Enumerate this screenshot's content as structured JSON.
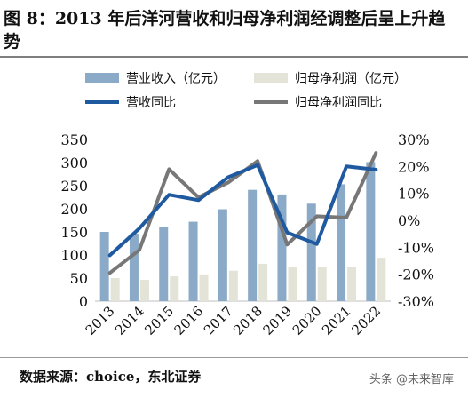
{
  "figure": {
    "title": "图 8：2013 年后洋河营收和归母净利润经调整后呈上升趋势",
    "source": "数据来源：choice，东北证券",
    "watermark": "头条 @未来智库"
  },
  "colors": {
    "revenue_bar": "#8aaac8",
    "net_profit_bar": "#e3e3d7",
    "revenue_yoy_line": "#1f5aa0",
    "net_profit_yoy_line": "#777777",
    "axis_text": "#111111"
  },
  "chart_data": {
    "type": "bar",
    "categories": [
      "2013",
      "2014",
      "2015",
      "2016",
      "2017",
      "2018",
      "2019",
      "2020",
      "2021",
      "2022"
    ],
    "series": [
      {
        "name": "营业收入（亿元）",
        "type": "bar",
        "axis": "left",
        "values": [
          150,
          146,
          160,
          172,
          199,
          241,
          231,
          211,
          253,
          301
        ]
      },
      {
        "name": "归母净利润（亿元）",
        "type": "bar",
        "axis": "left",
        "values": [
          50,
          46,
          54,
          58,
          66,
          81,
          74,
          75,
          75,
          94
        ]
      },
      {
        "name": "营收同比",
        "type": "line",
        "axis": "right",
        "unit": "%",
        "values": [
          -13,
          -3,
          9.5,
          7.5,
          16,
          20.5,
          -4.5,
          -8.8,
          20,
          18.8
        ]
      },
      {
        "name": "归母净利润同比",
        "type": "line",
        "axis": "right",
        "unit": "%",
        "values": [
          -19.5,
          -11,
          19,
          8.5,
          14,
          22,
          -9,
          1.5,
          1,
          25
        ]
      }
    ],
    "y_left": {
      "range": [
        0,
        350
      ],
      "ticks": [
        "0",
        "50",
        "100",
        "150",
        "200",
        "250",
        "300",
        "350"
      ]
    },
    "y_right": {
      "range": [
        -30,
        30
      ],
      "ticks": [
        "-30%",
        "-20%",
        "-10%",
        "0%",
        "10%",
        "20%",
        "30%"
      ]
    },
    "legend_position": "top",
    "grid": false
  }
}
